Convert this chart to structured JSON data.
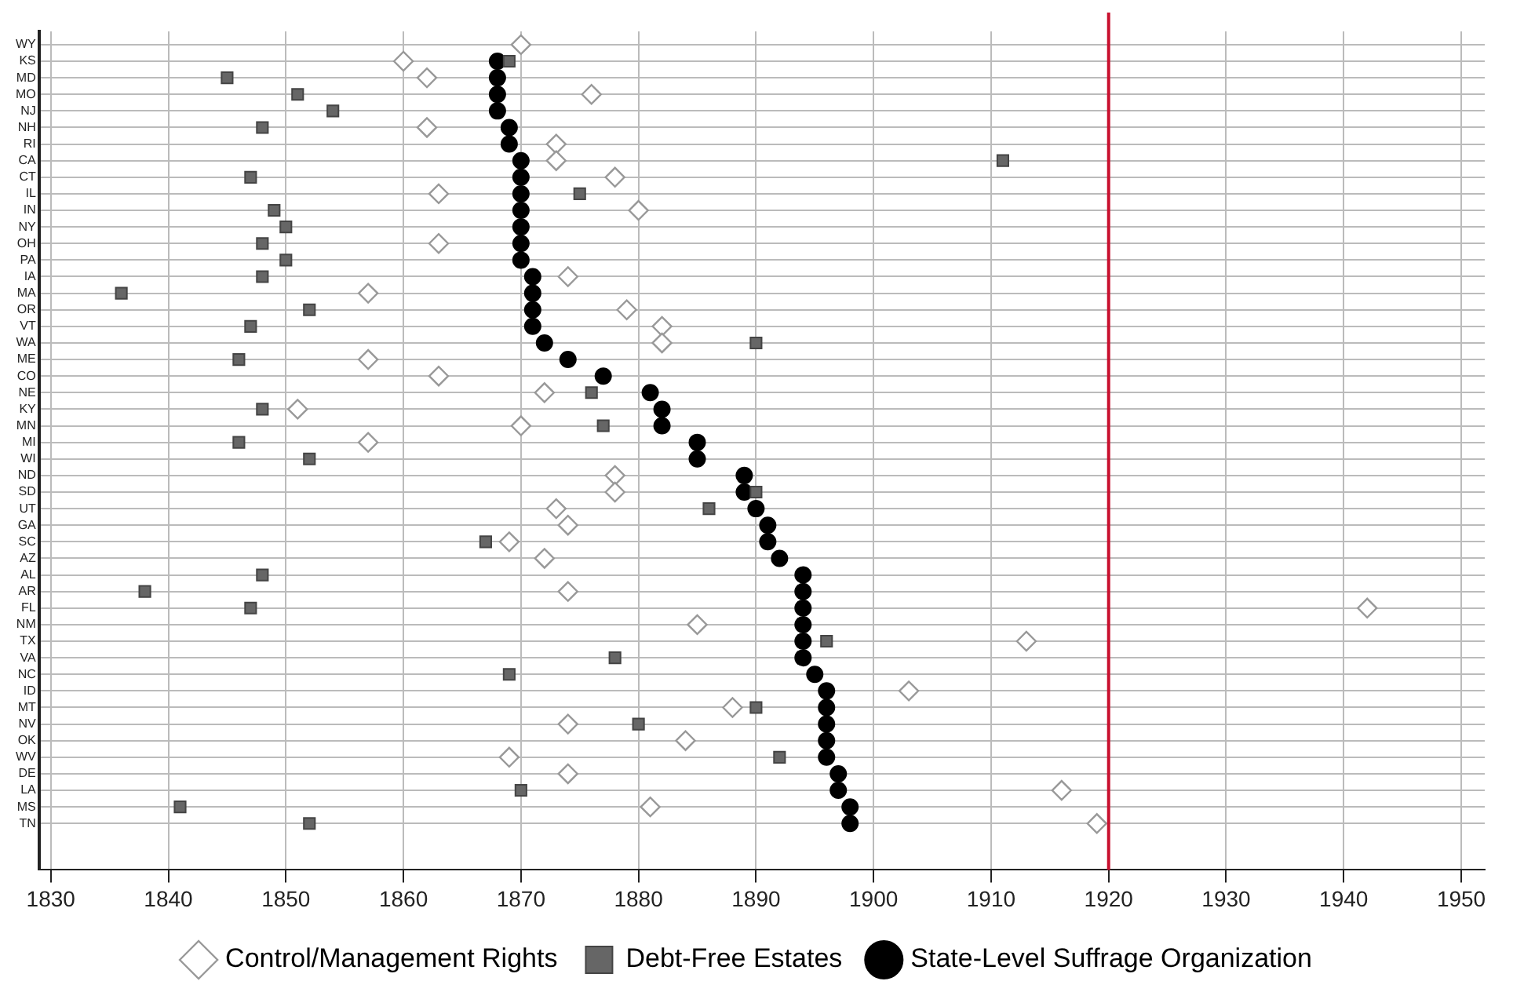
{
  "chart_data": {
    "type": "scatter",
    "orientation": "horizontal",
    "categories": [
      "WY",
      "KS",
      "MD",
      "MO",
      "NJ",
      "NH",
      "RI",
      "CA",
      "CT",
      "IL",
      "IN",
      "NY",
      "OH",
      "PA",
      "IA",
      "MA",
      "OR",
      "VT",
      "WA",
      "ME",
      "CO",
      "NE",
      "KY",
      "MN",
      "MI",
      "WI",
      "ND",
      "SD",
      "UT",
      "GA",
      "SC",
      "AZ",
      "AL",
      "AR",
      "FL",
      "NM",
      "TX",
      "VA",
      "NC",
      "ID",
      "MT",
      "NV",
      "OK",
      "WV",
      "DE",
      "LA",
      "MS",
      "TN"
    ],
    "series": [
      {
        "name": "State-Level Suffrage Organization",
        "color": "#000000",
        "marker": "circle",
        "values": [
          null,
          1868,
          1868,
          1868,
          1868,
          1869,
          1869,
          1870,
          1870,
          1870,
          1870,
          1870,
          1870,
          1870,
          1871,
          1871,
          1871,
          1871,
          1872,
          1874,
          1877,
          1881,
          1882,
          1882,
          1885,
          1885,
          1889,
          1889,
          1890,
          1891,
          1891,
          1892,
          1894,
          1894,
          1894,
          1894,
          1894,
          1894,
          1895,
          1896,
          1896,
          1896,
          1896,
          1896,
          1897,
          1897,
          1898,
          1898
        ]
      },
      {
        "name": "Debt-Free Estates",
        "color": "#666666",
        "marker": "square",
        "values": [
          null,
          1869,
          1845,
          1851,
          1854,
          1848,
          null,
          1911,
          1847,
          1875,
          1849,
          1850,
          1848,
          1850,
          1848,
          1836,
          1852,
          1847,
          1890,
          1846,
          null,
          1876,
          1848,
          1877,
          1846,
          1852,
          null,
          1890,
          1886,
          null,
          1867,
          null,
          1848,
          1838,
          1847,
          null,
          1896,
          1878,
          1869,
          null,
          1890,
          1880,
          null,
          1892,
          null,
          1870,
          1841,
          1852
        ]
      },
      {
        "name": "Control/Management Rights",
        "color": "#999999",
        "marker": "diamond",
        "values": [
          1870,
          1860,
          1862,
          1876,
          null,
          1862,
          1873,
          1873,
          1878,
          1863,
          1880,
          null,
          1863,
          null,
          1874,
          1857,
          1879,
          1882,
          1882,
          1857,
          1863,
          1872,
          1851,
          1870,
          1857,
          null,
          1878,
          1878,
          1873,
          1874,
          1869,
          1872,
          null,
          1874,
          1942,
          1885,
          1913,
          null,
          null,
          1903,
          1888,
          1874,
          1884,
          1869,
          1874,
          1916,
          1881,
          1919
        ]
      }
    ],
    "xlim": [
      1829,
      1952
    ],
    "xticks": [
      1830,
      1840,
      1850,
      1860,
      1870,
      1880,
      1890,
      1900,
      1910,
      1920,
      1930,
      1940,
      1950
    ],
    "ref_lines": [
      {
        "axis": "x",
        "value": 1920,
        "color": "#c8102e"
      }
    ],
    "grid": true,
    "legend": "bottom"
  }
}
